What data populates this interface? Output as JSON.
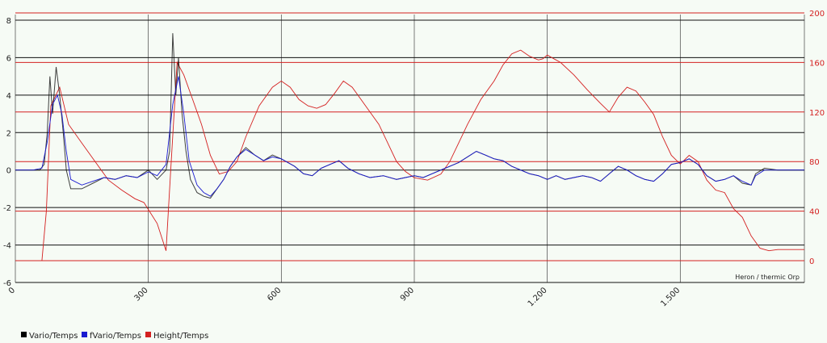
{
  "chart_data": {
    "type": "line",
    "description": "Heron / thermic Orp",
    "x_axis": {
      "range": [
        0,
        1780
      ],
      "ticks": [
        0,
        300,
        600,
        900,
        1200,
        1500
      ],
      "tick_labels": [
        "0",
        "300",
        "600",
        "900",
        "1.200",
        "1.500"
      ]
    },
    "y_axis_left": {
      "range": [
        -6,
        8.3
      ],
      "ticks": [
        -6,
        -4,
        -2,
        0,
        2,
        4,
        6,
        8
      ],
      "tick_labels": [
        "-6",
        "-4",
        "-2",
        "0",
        "2",
        "4",
        "6",
        "8"
      ]
    },
    "y_axis_right": {
      "range": [
        0,
        200
      ],
      "ticks": [
        0,
        40,
        80,
        120,
        160,
        200
      ],
      "tick_labels": [
        "0",
        "40",
        "80",
        "120",
        "160",
        "200"
      ],
      "color": "#d42020"
    },
    "series": [
      {
        "name": "Vario/Temps",
        "color": "#000000",
        "axis": "left",
        "points": [
          [
            0,
            0
          ],
          [
            20,
            0
          ],
          [
            40,
            0
          ],
          [
            55,
            0
          ],
          [
            65,
            0.3
          ],
          [
            72,
            2
          ],
          [
            78,
            5
          ],
          [
            84,
            3
          ],
          [
            92,
            5.5
          ],
          [
            100,
            4
          ],
          [
            108,
            2
          ],
          [
            115,
            0
          ],
          [
            125,
            -1
          ],
          [
            150,
            -1
          ],
          [
            175,
            -0.7
          ],
          [
            200,
            -0.4
          ],
          [
            225,
            -0.5
          ],
          [
            250,
            -0.3
          ],
          [
            275,
            -0.4
          ],
          [
            300,
            0
          ],
          [
            320,
            -0.5
          ],
          [
            340,
            0
          ],
          [
            348,
            1
          ],
          [
            355,
            7.3
          ],
          [
            362,
            4
          ],
          [
            368,
            6
          ],
          [
            376,
            3
          ],
          [
            385,
            1
          ],
          [
            395,
            -0.5
          ],
          [
            410,
            -1.2
          ],
          [
            425,
            -1.4
          ],
          [
            440,
            -1.5
          ],
          [
            455,
            -1
          ],
          [
            470,
            -0.5
          ],
          [
            485,
            0.2
          ],
          [
            500,
            0.7
          ],
          [
            520,
            1.2
          ],
          [
            540,
            0.8
          ],
          [
            560,
            0.5
          ],
          [
            580,
            0.8
          ],
          [
            600,
            0.6
          ],
          [
            630,
            0.2
          ],
          [
            650,
            -0.2
          ],
          [
            670,
            -0.3
          ],
          [
            690,
            0.1
          ],
          [
            710,
            0.3
          ],
          [
            730,
            0.5
          ],
          [
            750,
            0.1
          ],
          [
            775,
            -0.2
          ],
          [
            800,
            -0.4
          ],
          [
            830,
            -0.3
          ],
          [
            860,
            -0.5
          ],
          [
            880,
            -0.4
          ],
          [
            900,
            -0.3
          ],
          [
            920,
            -0.4
          ],
          [
            940,
            -0.2
          ],
          [
            960,
            0
          ],
          [
            980,
            0.2
          ],
          [
            1000,
            0.4
          ],
          [
            1020,
            0.7
          ],
          [
            1040,
            1
          ],
          [
            1060,
            0.8
          ],
          [
            1080,
            0.6
          ],
          [
            1100,
            0.5
          ],
          [
            1120,
            0.2
          ],
          [
            1140,
            0
          ],
          [
            1160,
            -0.2
          ],
          [
            1180,
            -0.3
          ],
          [
            1200,
            -0.5
          ],
          [
            1220,
            -0.3
          ],
          [
            1240,
            -0.5
          ],
          [
            1260,
            -0.4
          ],
          [
            1280,
            -0.3
          ],
          [
            1300,
            -0.4
          ],
          [
            1320,
            -0.6
          ],
          [
            1340,
            -0.2
          ],
          [
            1360,
            0.2
          ],
          [
            1380,
            0
          ],
          [
            1400,
            -0.3
          ],
          [
            1420,
            -0.5
          ],
          [
            1440,
            -0.6
          ],
          [
            1460,
            -0.2
          ],
          [
            1480,
            0.3
          ],
          [
            1500,
            0.4
          ],
          [
            1520,
            0.6
          ],
          [
            1540,
            0.3
          ],
          [
            1560,
            -0.3
          ],
          [
            1580,
            -0.6
          ],
          [
            1600,
            -0.5
          ],
          [
            1620,
            -0.3
          ],
          [
            1640,
            -0.7
          ],
          [
            1660,
            -0.8
          ],
          [
            1670,
            -0.2
          ],
          [
            1690,
            0.1
          ],
          [
            1720,
            0
          ],
          [
            1750,
            0
          ],
          [
            1780,
            0
          ]
        ]
      },
      {
        "name": "fVario/Temps",
        "color": "#1a1ad0",
        "axis": "left",
        "points": [
          [
            0,
            0
          ],
          [
            40,
            0
          ],
          [
            60,
            0.1
          ],
          [
            72,
            1.5
          ],
          [
            84,
            3.5
          ],
          [
            95,
            4
          ],
          [
            105,
            3
          ],
          [
            115,
            1
          ],
          [
            125,
            -0.5
          ],
          [
            150,
            -0.8
          ],
          [
            175,
            -0.6
          ],
          [
            200,
            -0.4
          ],
          [
            225,
            -0.5
          ],
          [
            250,
            -0.3
          ],
          [
            275,
            -0.4
          ],
          [
            300,
            -0.1
          ],
          [
            320,
            -0.3
          ],
          [
            340,
            0.3
          ],
          [
            355,
            3.5
          ],
          [
            368,
            5
          ],
          [
            380,
            3
          ],
          [
            392,
            0.5
          ],
          [
            410,
            -0.8
          ],
          [
            425,
            -1.2
          ],
          [
            440,
            -1.4
          ],
          [
            455,
            -1
          ],
          [
            470,
            -0.5
          ],
          [
            485,
            0.2
          ],
          [
            500,
            0.7
          ],
          [
            520,
            1.1
          ],
          [
            540,
            0.8
          ],
          [
            560,
            0.5
          ],
          [
            580,
            0.7
          ],
          [
            600,
            0.6
          ],
          [
            630,
            0.2
          ],
          [
            650,
            -0.2
          ],
          [
            670,
            -0.3
          ],
          [
            690,
            0.1
          ],
          [
            710,
            0.3
          ],
          [
            730,
            0.5
          ],
          [
            750,
            0.1
          ],
          [
            775,
            -0.2
          ],
          [
            800,
            -0.4
          ],
          [
            830,
            -0.3
          ],
          [
            860,
            -0.5
          ],
          [
            880,
            -0.4
          ],
          [
            900,
            -0.3
          ],
          [
            920,
            -0.4
          ],
          [
            940,
            -0.2
          ],
          [
            960,
            0
          ],
          [
            980,
            0.2
          ],
          [
            1000,
            0.4
          ],
          [
            1020,
            0.7
          ],
          [
            1040,
            1
          ],
          [
            1060,
            0.8
          ],
          [
            1080,
            0.6
          ],
          [
            1100,
            0.5
          ],
          [
            1120,
            0.2
          ],
          [
            1140,
            0
          ],
          [
            1160,
            -0.2
          ],
          [
            1180,
            -0.3
          ],
          [
            1200,
            -0.5
          ],
          [
            1220,
            -0.3
          ],
          [
            1240,
            -0.5
          ],
          [
            1260,
            -0.4
          ],
          [
            1280,
            -0.3
          ],
          [
            1300,
            -0.4
          ],
          [
            1320,
            -0.6
          ],
          [
            1340,
            -0.2
          ],
          [
            1360,
            0.2
          ],
          [
            1380,
            0
          ],
          [
            1400,
            -0.3
          ],
          [
            1420,
            -0.5
          ],
          [
            1440,
            -0.6
          ],
          [
            1460,
            -0.2
          ],
          [
            1480,
            0.3
          ],
          [
            1500,
            0.4
          ],
          [
            1520,
            0.6
          ],
          [
            1540,
            0.3
          ],
          [
            1560,
            -0.3
          ],
          [
            1580,
            -0.6
          ],
          [
            1600,
            -0.5
          ],
          [
            1620,
            -0.3
          ],
          [
            1640,
            -0.6
          ],
          [
            1660,
            -0.8
          ],
          [
            1670,
            -0.3
          ],
          [
            1690,
            0
          ],
          [
            1720,
            0
          ],
          [
            1780,
            0
          ]
        ]
      },
      {
        "name": "Height/Temps",
        "color": "#d42020",
        "axis": "right",
        "points": [
          [
            0,
            0
          ],
          [
            60,
            0
          ],
          [
            70,
            40
          ],
          [
            80,
            125
          ],
          [
            100,
            140
          ],
          [
            120,
            110
          ],
          [
            150,
            95
          ],
          [
            180,
            80
          ],
          [
            210,
            65
          ],
          [
            240,
            57
          ],
          [
            270,
            50
          ],
          [
            290,
            47
          ],
          [
            320,
            30
          ],
          [
            340,
            8
          ],
          [
            350,
            70
          ],
          [
            365,
            160
          ],
          [
            380,
            150
          ],
          [
            400,
            130
          ],
          [
            420,
            110
          ],
          [
            440,
            85
          ],
          [
            460,
            70
          ],
          [
            480,
            72
          ],
          [
            500,
            80
          ],
          [
            520,
            100
          ],
          [
            550,
            125
          ],
          [
            580,
            140
          ],
          [
            600,
            145
          ],
          [
            620,
            140
          ],
          [
            640,
            130
          ],
          [
            660,
            125
          ],
          [
            680,
            123
          ],
          [
            700,
            126
          ],
          [
            720,
            135
          ],
          [
            740,
            145
          ],
          [
            760,
            140
          ],
          [
            780,
            130
          ],
          [
            800,
            120
          ],
          [
            820,
            110
          ],
          [
            840,
            95
          ],
          [
            860,
            80
          ],
          [
            880,
            72
          ],
          [
            900,
            67
          ],
          [
            930,
            65
          ],
          [
            960,
            70
          ],
          [
            980,
            80
          ],
          [
            1000,
            95
          ],
          [
            1020,
            110
          ],
          [
            1050,
            130
          ],
          [
            1080,
            145
          ],
          [
            1100,
            158
          ],
          [
            1120,
            167
          ],
          [
            1140,
            170
          ],
          [
            1160,
            165
          ],
          [
            1180,
            162
          ],
          [
            1190,
            163
          ],
          [
            1200,
            166
          ],
          [
            1210,
            164
          ],
          [
            1230,
            160
          ],
          [
            1260,
            150
          ],
          [
            1290,
            138
          ],
          [
            1320,
            127
          ],
          [
            1340,
            120
          ],
          [
            1360,
            132
          ],
          [
            1380,
            140
          ],
          [
            1400,
            137
          ],
          [
            1420,
            128
          ],
          [
            1440,
            118
          ],
          [
            1460,
            100
          ],
          [
            1480,
            85
          ],
          [
            1500,
            78
          ],
          [
            1520,
            85
          ],
          [
            1540,
            80
          ],
          [
            1560,
            65
          ],
          [
            1580,
            57
          ],
          [
            1600,
            55
          ],
          [
            1620,
            42
          ],
          [
            1640,
            35
          ],
          [
            1660,
            20
          ],
          [
            1680,
            10
          ],
          [
            1700,
            8
          ],
          [
            1720,
            9
          ],
          [
            1750,
            9
          ],
          [
            1780,
            9
          ]
        ]
      }
    ]
  }
}
